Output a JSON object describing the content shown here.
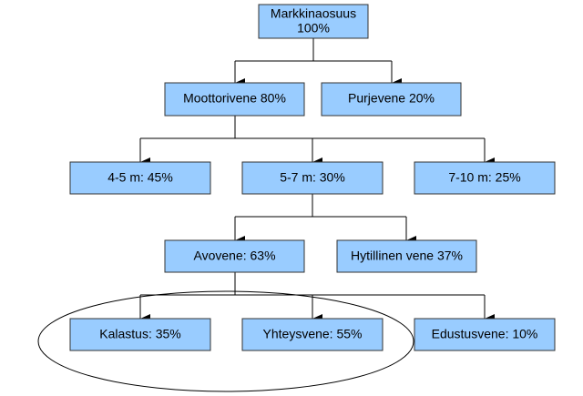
{
  "nodes": [
    {
      "lines": [
        "Markkinaosuus",
        "100%"
      ]
    },
    {
      "label": "Moottorivene 80%"
    },
    {
      "label": "Purjevene 20%"
    },
    {
      "label": "4-5 m: 45%"
    },
    {
      "label": "5-7 m: 30%"
    },
    {
      "label": "7-10 m: 25%"
    },
    {
      "label": "Avovene: 63%"
    },
    {
      "label": "Hytillinen vene 37%"
    },
    {
      "label": "Kalastus: 35%"
    },
    {
      "label": "Yhteysvene: 55%"
    },
    {
      "label": "Edustusvene: 10%"
    }
  ]
}
